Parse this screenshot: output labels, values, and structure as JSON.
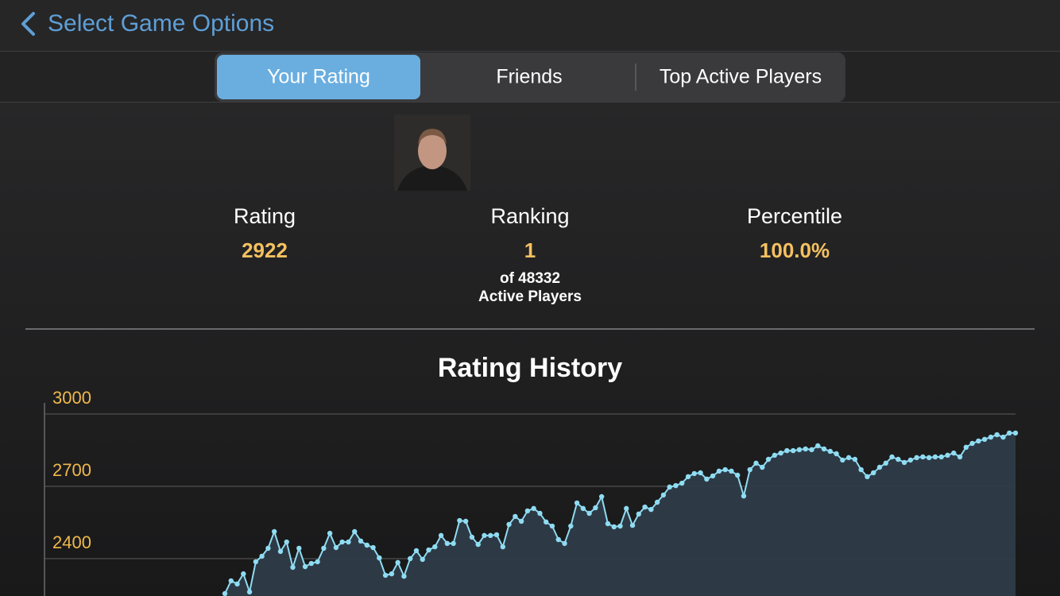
{
  "header": {
    "back_title": "Select Game Options"
  },
  "tabs": [
    "Your Rating",
    "Friends",
    "Top Active Players"
  ],
  "stats": {
    "rating": {
      "label": "Rating",
      "value": "2922"
    },
    "ranking": {
      "label": "Ranking",
      "value": "1",
      "of_line": "of 48332",
      "players_line": "Active Players"
    },
    "percentile": {
      "label": "Percentile",
      "value": "100.0%"
    }
  },
  "chart_data": {
    "type": "line",
    "title": "Rating History",
    "color": "#8fdcf2",
    "grid": true,
    "ylim": [
      2245,
      3046
    ],
    "yticks": [
      2400,
      2700,
      3000
    ],
    "values": [
      2255,
      2308,
      2295,
      2337,
      2262,
      2387,
      2410,
      2443,
      2512,
      2430,
      2469,
      2364,
      2443,
      2367,
      2380,
      2387,
      2443,
      2505,
      2446,
      2469,
      2469,
      2512,
      2473,
      2456,
      2446,
      2403,
      2331,
      2337,
      2384,
      2327,
      2400,
      2433,
      2397,
      2436,
      2449,
      2496,
      2463,
      2463,
      2558,
      2555,
      2489,
      2459,
      2496,
      2496,
      2499,
      2449,
      2542,
      2575,
      2555,
      2598,
      2608,
      2588,
      2552,
      2535,
      2479,
      2463,
      2535,
      2631,
      2608,
      2588,
      2611,
      2657,
      2545,
      2532,
      2535,
      2608,
      2538,
      2585,
      2614,
      2604,
      2634,
      2664,
      2697,
      2703,
      2713,
      2740,
      2753,
      2756,
      2730,
      2743,
      2763,
      2769,
      2763,
      2746,
      2660,
      2769,
      2796,
      2779,
      2812,
      2829,
      2838,
      2848,
      2848,
      2852,
      2855,
      2852,
      2868,
      2855,
      2845,
      2835,
      2809,
      2819,
      2812,
      2769,
      2740,
      2756,
      2779,
      2796,
      2822,
      2812,
      2799,
      2809,
      2819,
      2822,
      2819,
      2822,
      2822,
      2829,
      2838,
      2822,
      2862,
      2878,
      2888,
      2895,
      2904,
      2914,
      2904,
      2921,
      2921
    ]
  }
}
